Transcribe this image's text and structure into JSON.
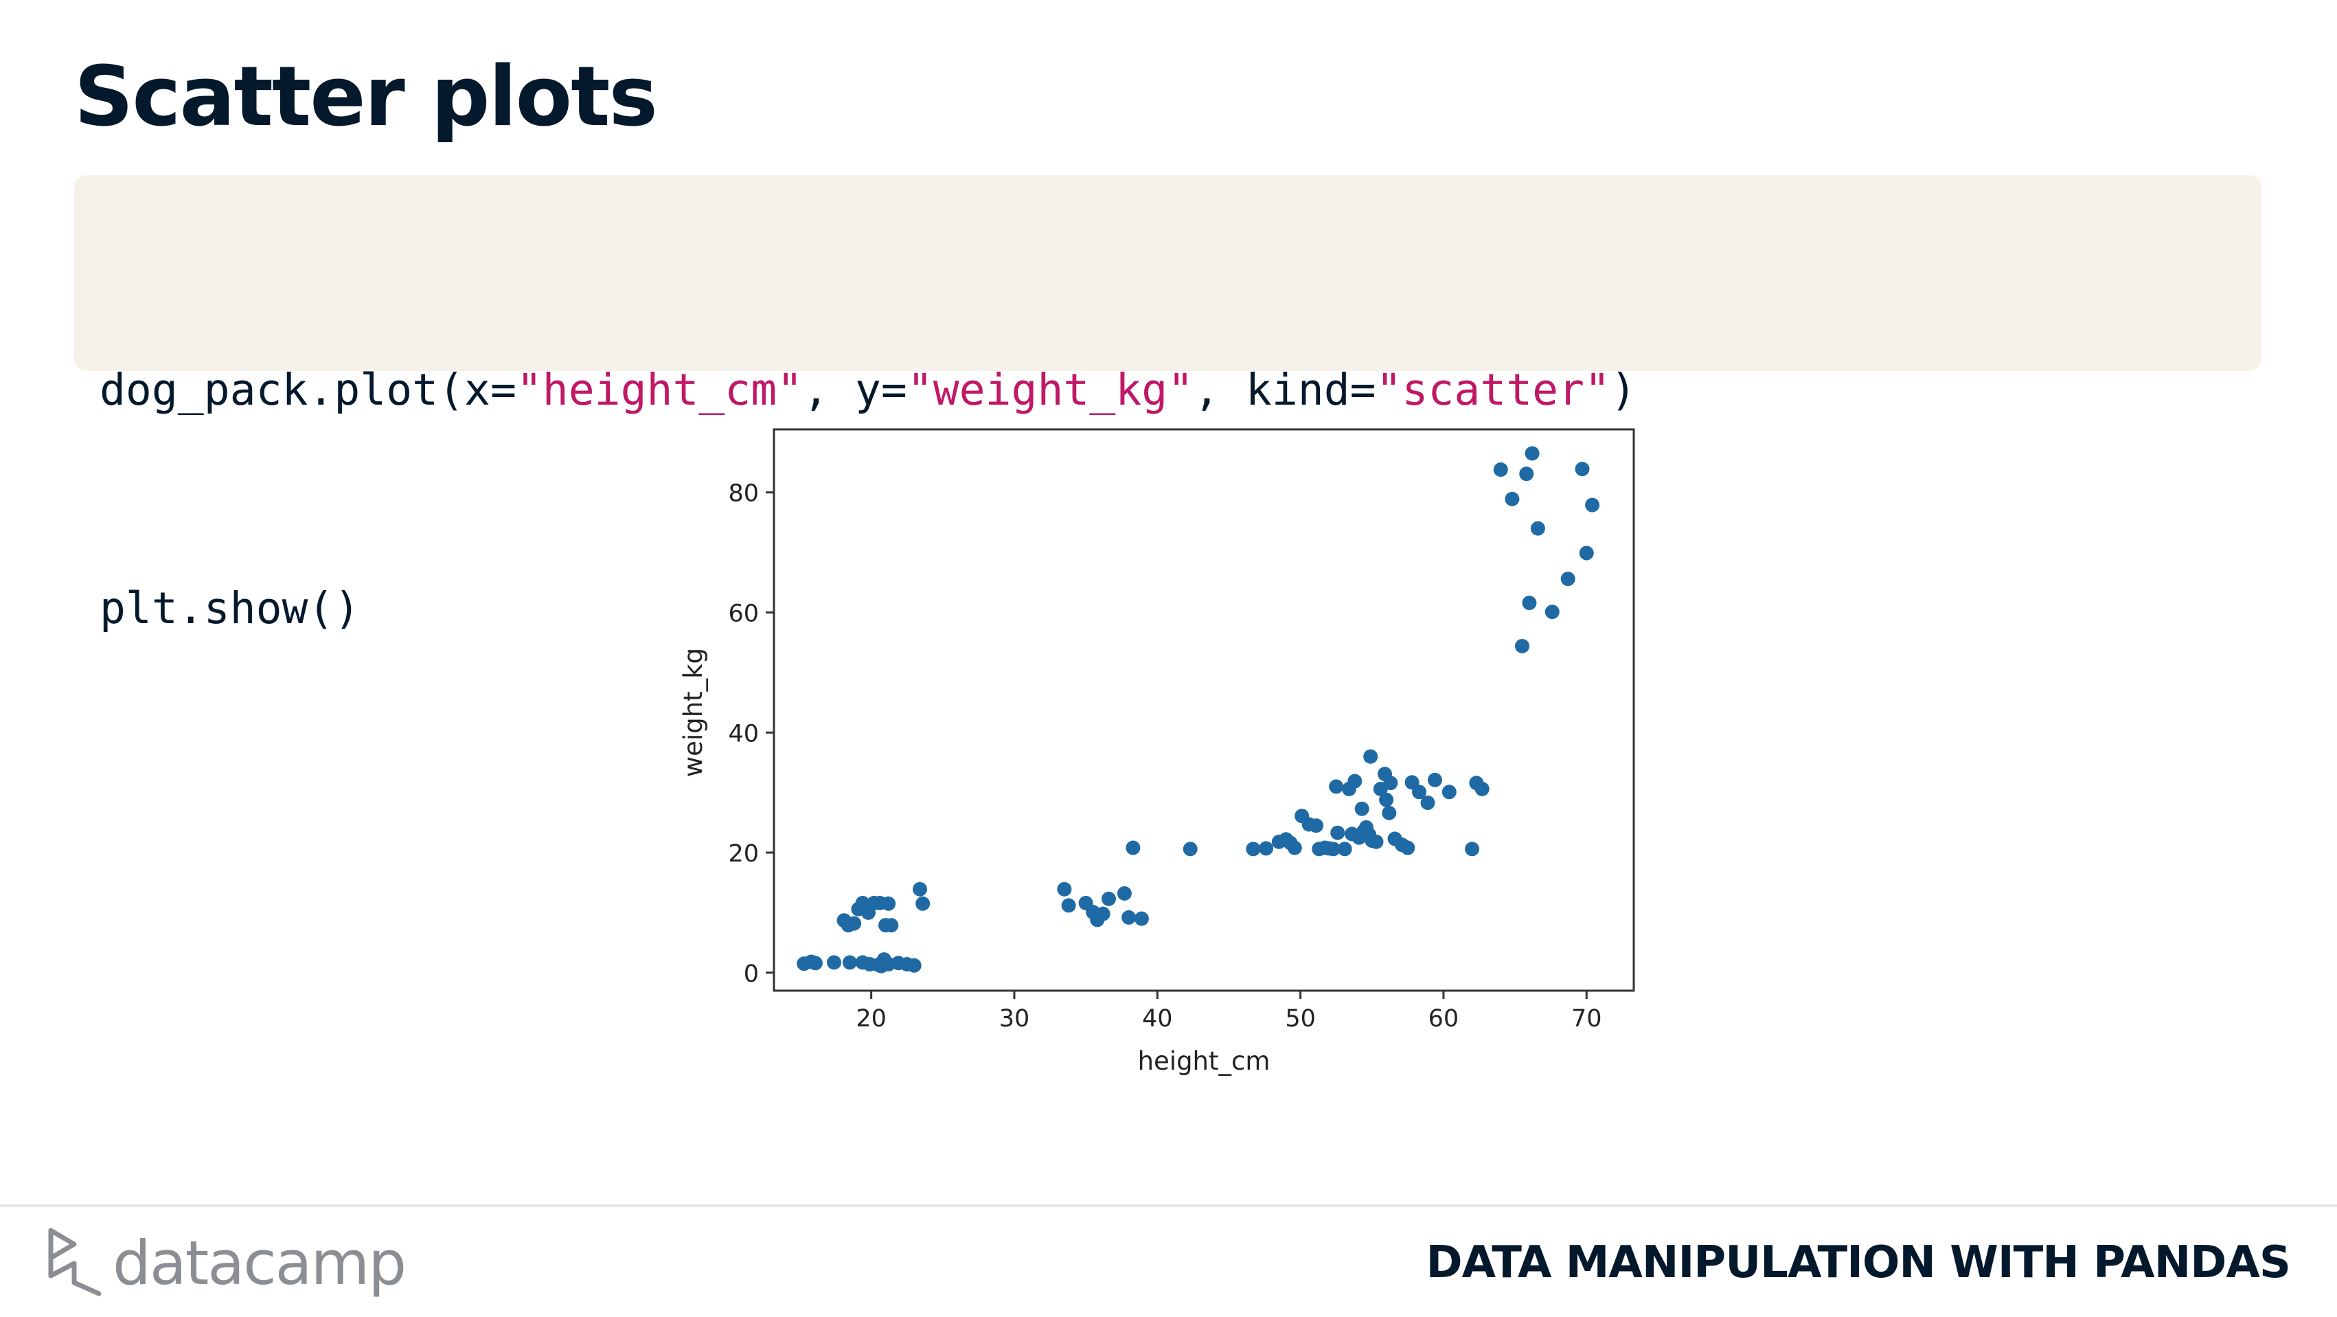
{
  "slide": {
    "title": "Scatter plots"
  },
  "code": {
    "line1": [
      {
        "text": "dog_pack.plot(x=",
        "type": "plain"
      },
      {
        "text": "\"height_cm\"",
        "type": "string"
      },
      {
        "text": ", y=",
        "type": "plain"
      },
      {
        "text": "\"weight_kg\"",
        "type": "string"
      },
      {
        "text": ", kind=",
        "type": "plain"
      },
      {
        "text": "\"scatter\"",
        "type": "string"
      },
      {
        "text": ")",
        "type": "plain"
      }
    ],
    "line2": [
      {
        "text": "plt.show()",
        "type": "plain"
      }
    ]
  },
  "colors": {
    "title": "#05192d",
    "code_background": "#f6f2eb",
    "code_string": "#c01866",
    "marker": "#1f6aa5",
    "logo": "#8b8f94"
  },
  "chart_data": {
    "type": "scatter",
    "title": "",
    "xlabel": "height_cm",
    "ylabel": "weight_kg",
    "xlim": [
      13.2,
      73.3
    ],
    "ylim": [
      -3,
      90.5
    ],
    "xticks": [
      20,
      30,
      40,
      50,
      60,
      70
    ],
    "yticks": [
      0,
      20,
      40,
      60,
      80
    ],
    "grid": false,
    "legend": "none",
    "marker_color": "#1f6aa5",
    "series": [
      {
        "x": [
          15.3,
          15.8,
          16.1,
          17.4,
          18.5,
          19.4,
          19.9,
          20.5,
          20.9,
          21.2,
          21.9,
          22.5,
          23.0,
          20.7,
          18.1,
          18.4,
          18.8,
          19.1,
          19.4,
          19.8,
          20.2,
          20.6,
          21.2,
          21.0,
          21.4,
          23.4,
          23.6,
          33.5,
          33.8,
          35.0,
          35.5,
          35.8,
          36.2,
          36.6,
          37.7,
          38.0,
          38.9,
          38.3,
          42.3,
          46.7,
          47.6,
          48.5,
          49.0,
          49.3,
          49.6,
          50.1,
          50.6,
          51.1,
          51.3,
          51.7,
          52.0,
          52.3,
          52.6,
          53.1,
          53.6,
          54.1,
          54.4,
          54.6,
          54.8,
          55.0,
          55.3,
          55.6,
          55.9,
          56.3,
          56.6,
          57.1,
          57.5,
          57.8,
          58.3,
          58.9,
          59.4,
          60.4,
          62.0,
          62.3,
          62.7,
          52.5,
          53.4,
          53.8,
          54.3,
          54.9,
          56.0,
          56.2,
          64.0,
          64.8,
          65.5,
          65.8,
          66.0,
          66.2,
          66.6,
          67.6,
          68.7,
          69.7,
          70.0,
          70.4
        ]
      },
      {
        "y": [
          1.5,
          1.8,
          1.6,
          1.7,
          1.7,
          1.7,
          1.4,
          1.3,
          2.2,
          1.4,
          1.6,
          1.4,
          1.2,
          1.1,
          8.7,
          7.9,
          8.2,
          10.6,
          11.6,
          10.0,
          11.6,
          11.6,
          11.5,
          7.9,
          7.9,
          13.9,
          11.5,
          13.9,
          11.2,
          11.6,
          10.1,
          8.8,
          9.8,
          12.3,
          13.2,
          9.2,
          9.0,
          20.8,
          20.6,
          20.6,
          20.7,
          21.8,
          22.2,
          21.6,
          20.8,
          26.1,
          24.7,
          24.5,
          20.6,
          20.8,
          20.7,
          20.6,
          23.3,
          20.6,
          23.1,
          22.5,
          23.5,
          24.2,
          23.0,
          22.0,
          21.8,
          30.6,
          33.1,
          31.6,
          22.3,
          21.3,
          20.8,
          31.7,
          30.1,
          28.3,
          32.1,
          30.1,
          20.6,
          31.6,
          30.6,
          31.0,
          30.6,
          31.9,
          27.3,
          36.0,
          28.8,
          26.6,
          83.8,
          78.9,
          54.4,
          83.1,
          61.6,
          86.5,
          74.0,
          60.1,
          65.6,
          83.9,
          69.9,
          77.9
        ]
      }
    ]
  },
  "footer": {
    "logo_text": "datacamp",
    "course": "DATA MANIPULATION WITH PANDAS"
  }
}
